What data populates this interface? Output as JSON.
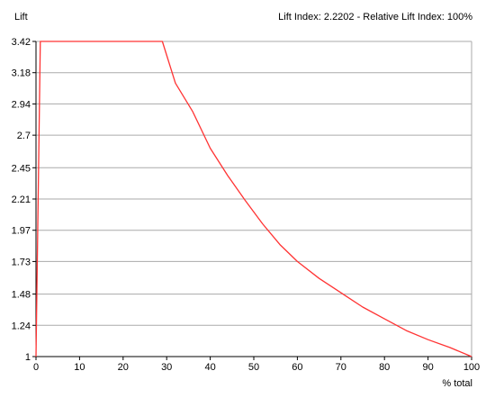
{
  "chart_data": {
    "type": "line",
    "ylabel": "Lift",
    "xlabel": "% total",
    "annotation": "Lift Index: 2.2202 - Relative Lift Index: 100%",
    "xlim": [
      0,
      100
    ],
    "ylim": [
      1,
      3.42
    ],
    "x_ticks": [
      0,
      10,
      20,
      30,
      40,
      50,
      60,
      70,
      80,
      90,
      100
    ],
    "y_ticks": [
      "1",
      "1.24",
      "1.48",
      "1.73",
      "1.97",
      "2.21",
      "2.45",
      "2.7",
      "2.94",
      "3.18",
      "3.42"
    ],
    "grid": true,
    "series": [
      {
        "color": "#ff3333",
        "x": [
          0,
          1,
          10,
          20,
          29,
          32,
          36,
          40,
          44,
          48,
          52,
          56,
          60,
          65,
          70,
          75,
          80,
          85,
          90,
          95,
          100
        ],
        "y": [
          1,
          3.42,
          3.42,
          3.42,
          3.42,
          3.1,
          2.88,
          2.6,
          2.39,
          2.2,
          2.02,
          1.86,
          1.73,
          1.6,
          1.49,
          1.38,
          1.29,
          1.2,
          1.13,
          1.07,
          1.0
        ]
      }
    ]
  }
}
